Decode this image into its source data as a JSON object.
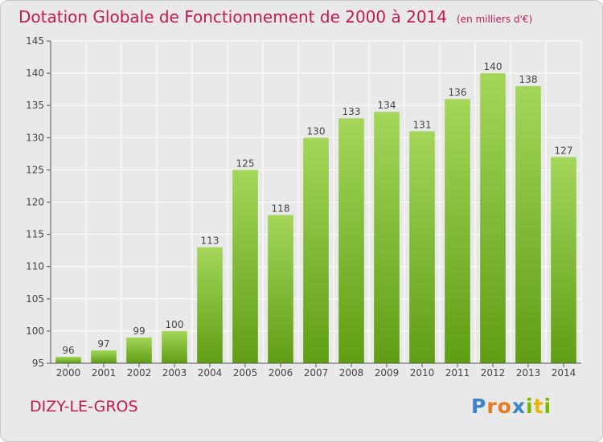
{
  "chart_data": {
    "type": "bar",
    "title": "Dotation Globale de Fonctionnement de 2000 à 2014",
    "subtitle": "(en milliers d'€)",
    "categories": [
      "2000",
      "2001",
      "2002",
      "2003",
      "2004",
      "2005",
      "2006",
      "2007",
      "2008",
      "2009",
      "2010",
      "2011",
      "2012",
      "2013",
      "2014"
    ],
    "values": [
      96,
      97,
      99,
      100,
      113,
      125,
      118,
      130,
      133,
      134,
      131,
      136,
      140,
      138,
      127
    ],
    "ylim": [
      95,
      145
    ],
    "yticks": [
      95,
      100,
      105,
      110,
      115,
      120,
      125,
      130,
      135,
      140,
      145
    ],
    "grid": true,
    "colors": {
      "bar_top": "#a4d65a",
      "bar_bottom": "#5f9e14",
      "grid": "#ffffff",
      "axis": "#555555"
    }
  },
  "footer": {
    "place": "DIZY-LE-GROS",
    "logo_letters": [
      "P",
      "r",
      "o",
      "x",
      "i",
      "t",
      "i"
    ],
    "logo_colors": [
      "#3a86c8",
      "#e67a1c",
      "#e67a1c",
      "#3a86c8",
      "#7ab800",
      "#e8b400",
      "#7ab800"
    ]
  }
}
